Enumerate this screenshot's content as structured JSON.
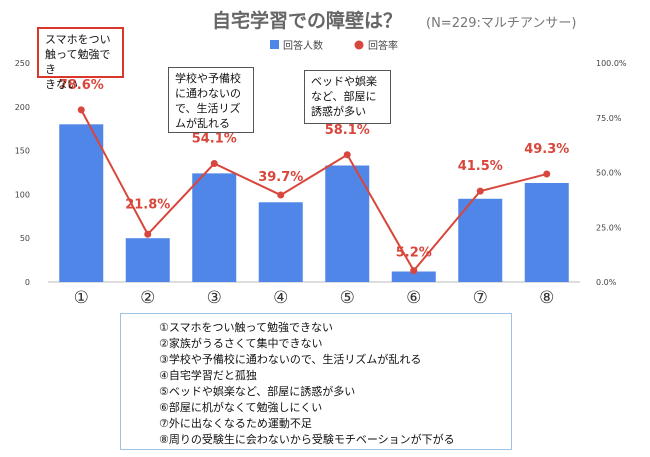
{
  "chart_data": {
    "type": "bar+line",
    "title": "自宅学習での障壁は？",
    "subtitle": "(N=229:マルチアンサー)",
    "categories": [
      "①",
      "②",
      "③",
      "④",
      "⑤",
      "⑥",
      "⑦",
      "⑧"
    ],
    "legend": [
      "回答人数",
      "回答率"
    ],
    "legend_position": "top-right",
    "series": [
      {
        "name": "回答人数",
        "type": "bar",
        "axis": "left",
        "color": "#4f86e8",
        "values": [
          180,
          50,
          124,
          91,
          133,
          12,
          95,
          113
        ]
      },
      {
        "name": "回答率",
        "type": "line",
        "axis": "right",
        "color": "#d9463b",
        "values": [
          78.6,
          21.8,
          54.1,
          39.7,
          58.1,
          5.2,
          41.5,
          49.3
        ]
      }
    ],
    "data_labels": [
      "78.6%",
      "21.8%",
      "54.1%",
      "39.7%",
      "58.1%",
      "5.2%",
      "41.5%",
      "49.3%"
    ],
    "y_left": {
      "ticks": [
        "0",
        "50",
        "100",
        "150",
        "200",
        "250"
      ],
      "range": [
        0,
        250
      ]
    },
    "y_right": {
      "ticks": [
        "0.0%",
        "25.0%",
        "50.0%",
        "75.0%",
        "100.0%"
      ],
      "range": [
        0,
        100
      ]
    },
    "grid": false
  },
  "callouts": {
    "c1": "スマホをつい\n触って勉強でき\nきない",
    "c3": "学校や予備校\nに通わないの\nで、生活リズ\nムが乱れる",
    "c5": "ベッドや娯楽\nなど、部屋に\n誘惑が多い"
  },
  "legend_items": [
    "①スマホをつい触って勉強できない",
    "②家族がうるさくて集中できない",
    "③学校や予備校に通わないので、生活リズムが乱れる",
    "④自宅学習だと孤独",
    "⑤ベッドや娯楽など、部屋に誘惑が多い",
    "⑥部屋に机がなくて勉強しにくい",
    "⑦外に出なくなるため運動不足",
    "⑧周りの受験生に会わないから受験モチベーションが下がる"
  ]
}
